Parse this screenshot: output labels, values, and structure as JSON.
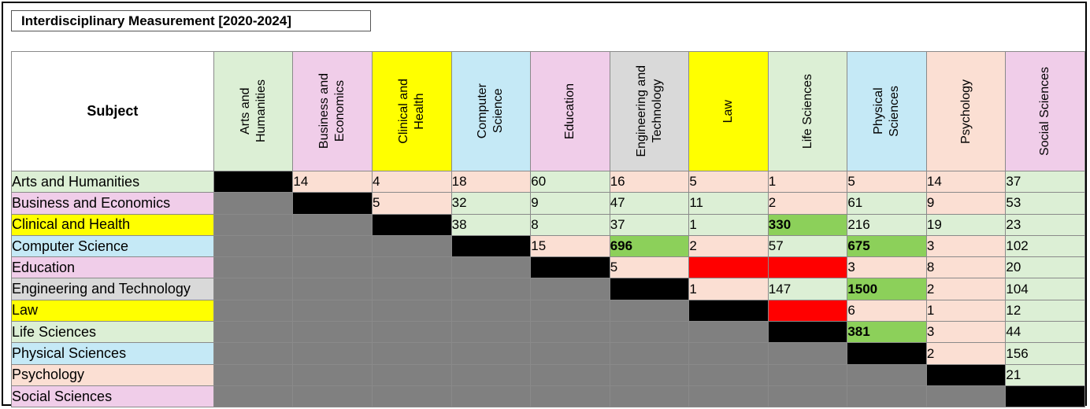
{
  "title": "Interdisciplinary Measurement [2020-2024]",
  "corner_label": "Subject",
  "colors": {
    "green": "#dcefd5",
    "pink": "#f0cde9",
    "yellow": "#ffff00",
    "blue": "#c5e9f6",
    "gray_header": "#d9d9d9",
    "salmon": "#fbdfd3",
    "gray_cell": "#808080",
    "black": "#000000",
    "highlight_green": "#8cd05a",
    "red": "#ff0000"
  },
  "subjects": [
    {
      "label": "Arts and Humanities",
      "col_label": "Arts and\nHumanities",
      "color": "#dcefd5"
    },
    {
      "label": "Business and Economics",
      "col_label": "Business and\nEconomics",
      "color": "#f0cde9"
    },
    {
      "label": "Clinical and Health",
      "col_label": "Clinical and\nHealth",
      "color": "#ffff00"
    },
    {
      "label": "Computer Science",
      "col_label": "Computer\nScience",
      "color": "#c5e9f6"
    },
    {
      "label": "Education",
      "col_label": "Education",
      "color": "#f0cde9"
    },
    {
      "label": "Engineering and Technology",
      "col_label": "Engineering and\nTechnology",
      "color": "#d9d9d9"
    },
    {
      "label": "Law",
      "col_label": "Law",
      "color": "#ffff00"
    },
    {
      "label": "Life Sciences",
      "col_label": "Life Sciences",
      "color": "#dcefd5"
    },
    {
      "label": "Physical Sciences",
      "col_label": "Physical\nSciences",
      "color": "#c5e9f6"
    },
    {
      "label": "Psychology",
      "col_label": "Psychology",
      "color": "#fbdfd3"
    },
    {
      "label": "Social Sciences",
      "col_label": "Social Sciences",
      "color": "#f0cde9"
    }
  ],
  "rows": [
    [
      {
        "t": "diag"
      },
      {
        "v": "14",
        "t": "salmon"
      },
      {
        "v": "4",
        "t": "salmon"
      },
      {
        "v": "18",
        "t": "salmon"
      },
      {
        "v": "60",
        "t": "green"
      },
      {
        "v": "16",
        "t": "salmon"
      },
      {
        "v": "5",
        "t": "salmon"
      },
      {
        "v": "1",
        "t": "salmon"
      },
      {
        "v": "5",
        "t": "salmon"
      },
      {
        "v": "14",
        "t": "salmon"
      },
      {
        "v": "37",
        "t": "green"
      }
    ],
    [
      {
        "t": "lower"
      },
      {
        "t": "diag"
      },
      {
        "v": "5",
        "t": "salmon"
      },
      {
        "v": "32",
        "t": "green"
      },
      {
        "v": "9",
        "t": "green"
      },
      {
        "v": "47",
        "t": "green"
      },
      {
        "v": "11",
        "t": "green"
      },
      {
        "v": "2",
        "t": "salmon"
      },
      {
        "v": "61",
        "t": "green"
      },
      {
        "v": "9",
        "t": "salmon"
      },
      {
        "v": "53",
        "t": "green"
      }
    ],
    [
      {
        "t": "lower"
      },
      {
        "t": "lower"
      },
      {
        "t": "diag"
      },
      {
        "v": "38",
        "t": "green"
      },
      {
        "v": "8",
        "t": "green"
      },
      {
        "v": "37",
        "t": "green"
      },
      {
        "v": "1",
        "t": "green"
      },
      {
        "v": "330",
        "t": "highlight",
        "b": true
      },
      {
        "v": "216",
        "t": "green"
      },
      {
        "v": "19",
        "t": "green"
      },
      {
        "v": "23",
        "t": "green"
      }
    ],
    [
      {
        "t": "lower"
      },
      {
        "t": "lower"
      },
      {
        "t": "lower"
      },
      {
        "t": "diag"
      },
      {
        "v": "15",
        "t": "salmon"
      },
      {
        "v": "696",
        "t": "highlight",
        "b": true
      },
      {
        "v": "2",
        "t": "salmon"
      },
      {
        "v": "57",
        "t": "green"
      },
      {
        "v": "675",
        "t": "highlight",
        "b": true
      },
      {
        "v": "3",
        "t": "salmon"
      },
      {
        "v": "102",
        "t": "green"
      }
    ],
    [
      {
        "t": "lower"
      },
      {
        "t": "lower"
      },
      {
        "t": "lower"
      },
      {
        "t": "lower"
      },
      {
        "t": "diag"
      },
      {
        "v": "5",
        "t": "salmon"
      },
      {
        "t": "red"
      },
      {
        "t": "red"
      },
      {
        "v": "3",
        "t": "salmon"
      },
      {
        "v": "8",
        "t": "salmon"
      },
      {
        "v": "20",
        "t": "green"
      }
    ],
    [
      {
        "t": "lower"
      },
      {
        "t": "lower"
      },
      {
        "t": "lower"
      },
      {
        "t": "lower"
      },
      {
        "t": "lower"
      },
      {
        "t": "diag"
      },
      {
        "v": "1",
        "t": "salmon"
      },
      {
        "v": "147",
        "t": "green"
      },
      {
        "v": "1500",
        "t": "highlight",
        "b": true
      },
      {
        "v": "2",
        "t": "salmon"
      },
      {
        "v": "104",
        "t": "green"
      }
    ],
    [
      {
        "t": "lower"
      },
      {
        "t": "lower"
      },
      {
        "t": "lower"
      },
      {
        "t": "lower"
      },
      {
        "t": "lower"
      },
      {
        "t": "lower"
      },
      {
        "t": "diag"
      },
      {
        "t": "red"
      },
      {
        "v": "6",
        "t": "salmon"
      },
      {
        "v": "1",
        "t": "salmon"
      },
      {
        "v": "12",
        "t": "green"
      }
    ],
    [
      {
        "t": "lower"
      },
      {
        "t": "lower"
      },
      {
        "t": "lower"
      },
      {
        "t": "lower"
      },
      {
        "t": "lower"
      },
      {
        "t": "lower"
      },
      {
        "t": "lower"
      },
      {
        "t": "diag"
      },
      {
        "v": "381",
        "t": "highlight",
        "b": true
      },
      {
        "v": "3",
        "t": "salmon"
      },
      {
        "v": "44",
        "t": "green"
      }
    ],
    [
      {
        "t": "lower"
      },
      {
        "t": "lower"
      },
      {
        "t": "lower"
      },
      {
        "t": "lower"
      },
      {
        "t": "lower"
      },
      {
        "t": "lower"
      },
      {
        "t": "lower"
      },
      {
        "t": "lower"
      },
      {
        "t": "diag"
      },
      {
        "v": "2",
        "t": "salmon"
      },
      {
        "v": "156",
        "t": "green"
      }
    ],
    [
      {
        "t": "lower"
      },
      {
        "t": "lower"
      },
      {
        "t": "lower"
      },
      {
        "t": "lower"
      },
      {
        "t": "lower"
      },
      {
        "t": "lower"
      },
      {
        "t": "lower"
      },
      {
        "t": "lower"
      },
      {
        "t": "lower"
      },
      {
        "t": "diag"
      },
      {
        "v": "21",
        "t": "green"
      }
    ],
    [
      {
        "t": "lower"
      },
      {
        "t": "lower"
      },
      {
        "t": "lower"
      },
      {
        "t": "lower"
      },
      {
        "t": "lower"
      },
      {
        "t": "lower"
      },
      {
        "t": "lower"
      },
      {
        "t": "lower"
      },
      {
        "t": "lower"
      },
      {
        "t": "lower"
      },
      {
        "t": "diag"
      }
    ]
  ]
}
